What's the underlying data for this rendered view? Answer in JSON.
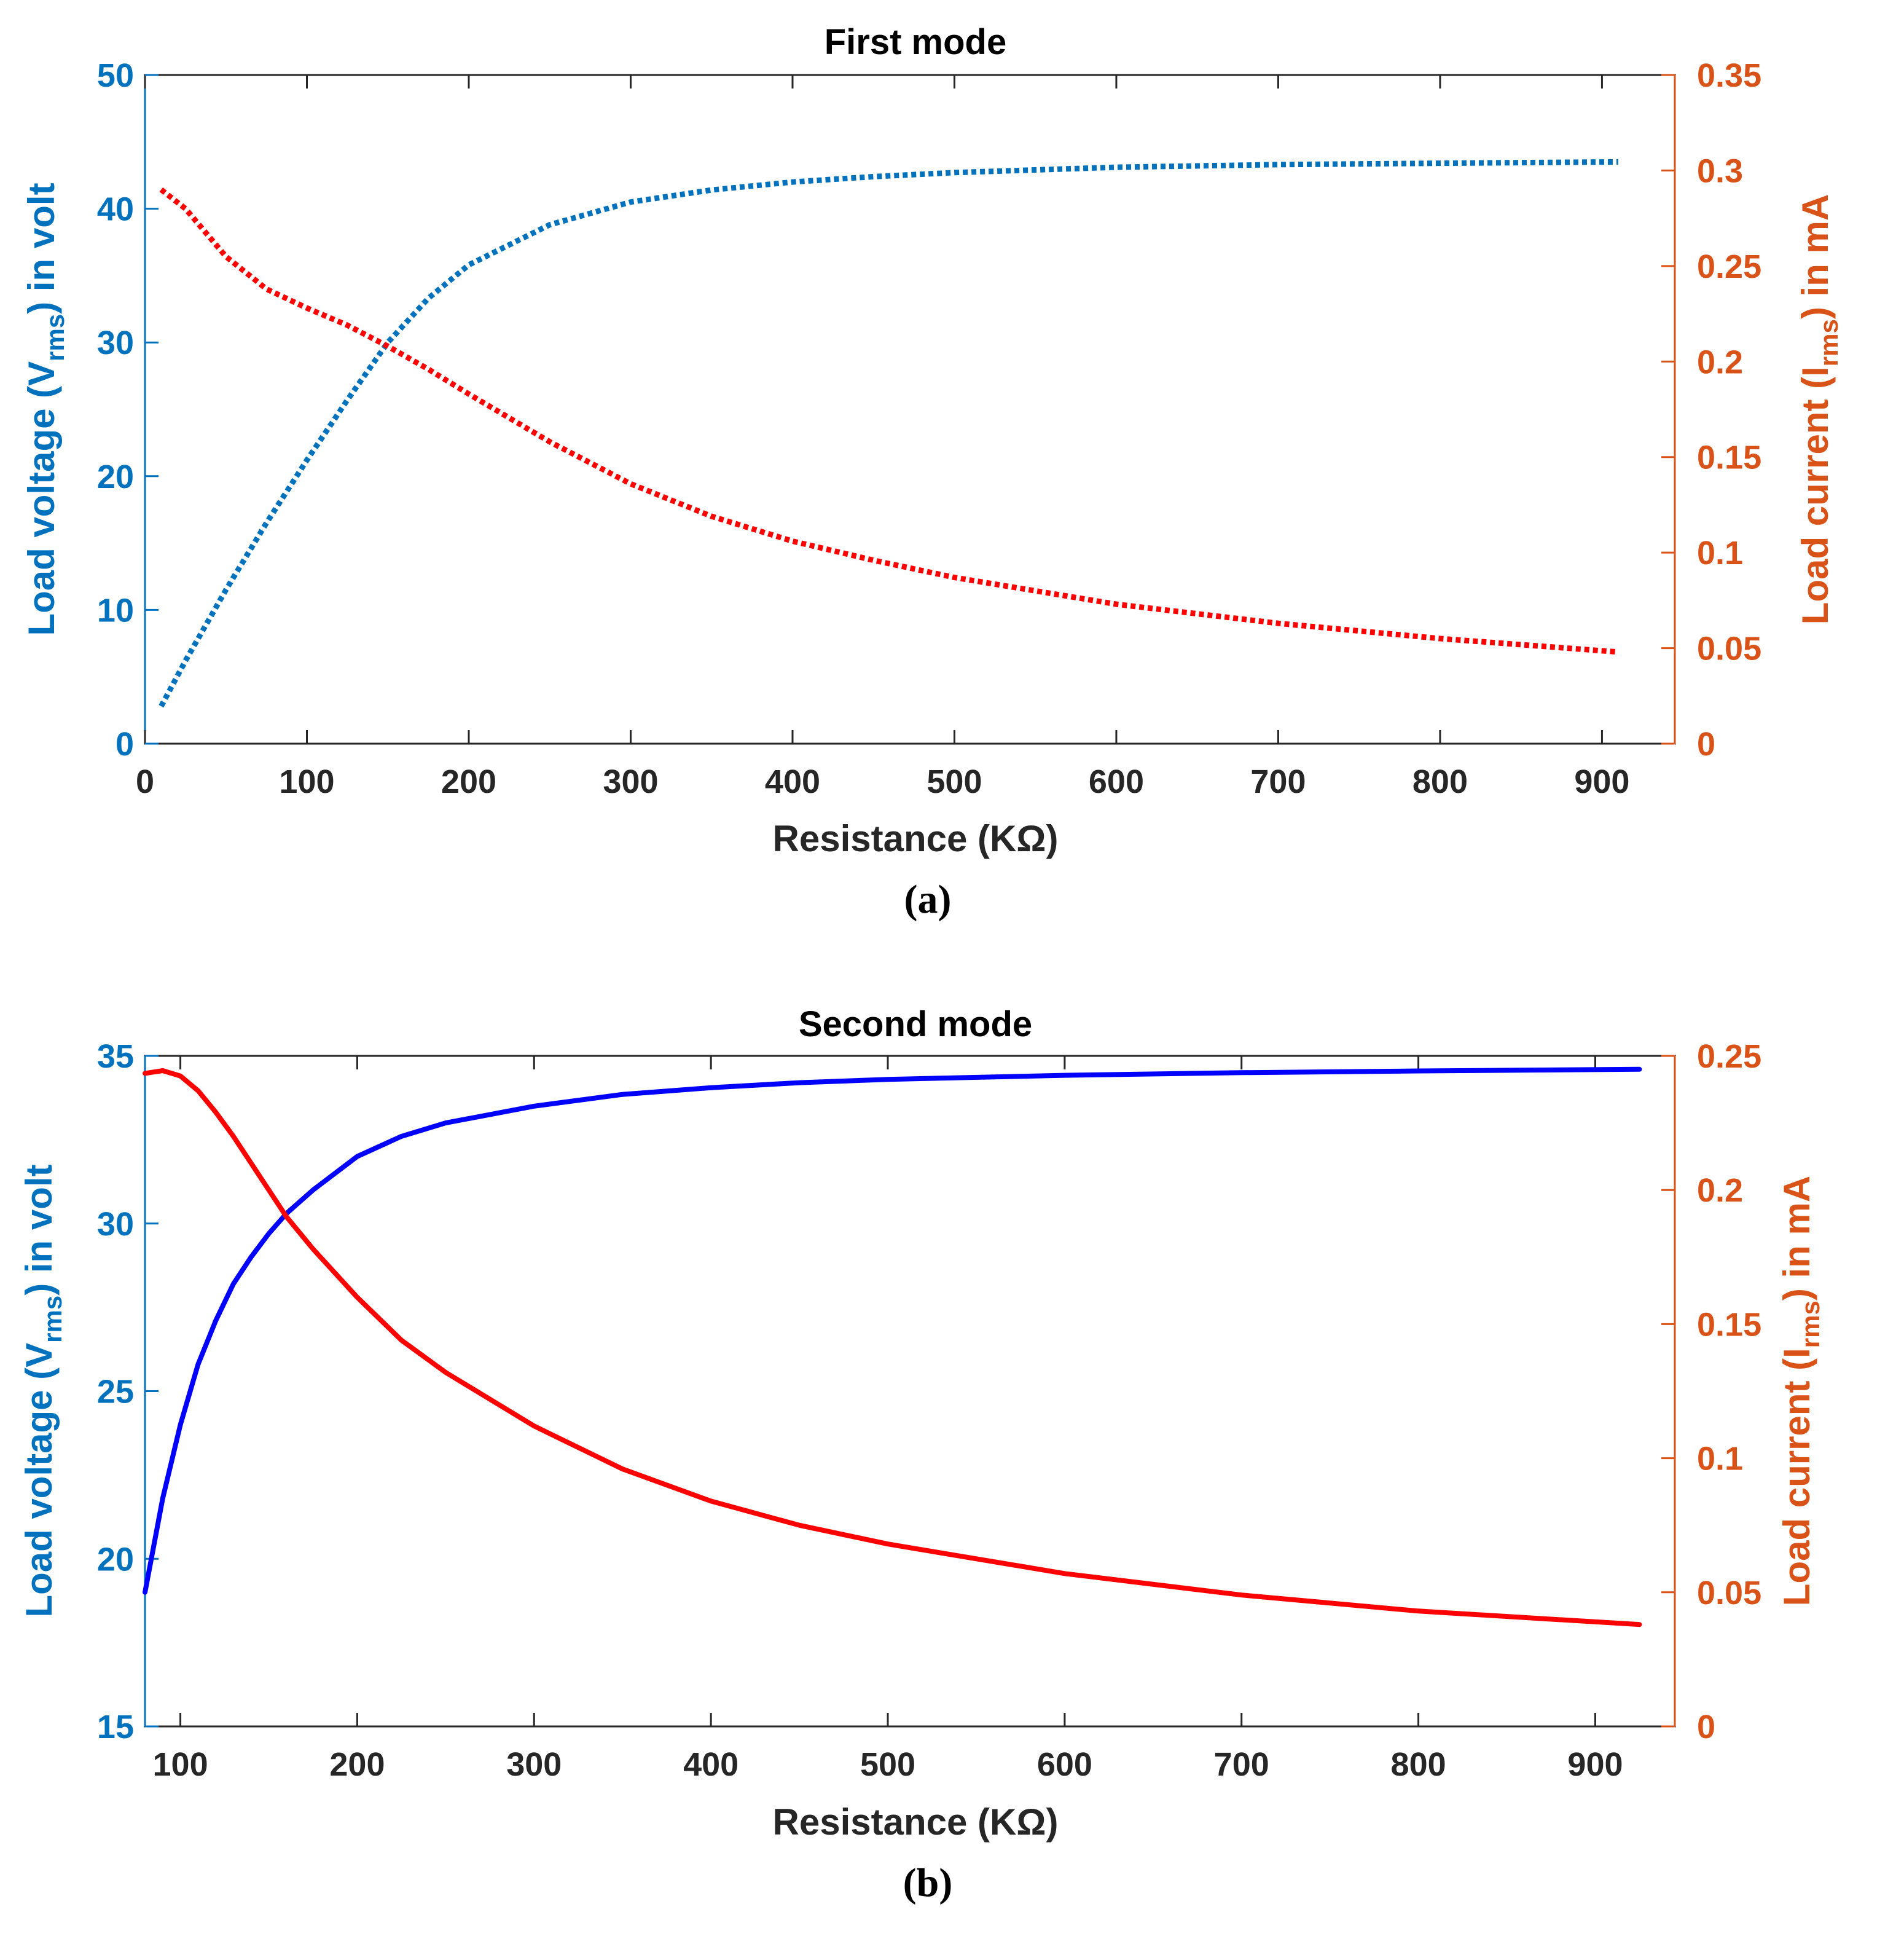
{
  "figure": {
    "panel_a_caption": "(a)",
    "panel_b_caption": "(b)"
  },
  "chart_data": [
    {
      "type": "line",
      "title": "First mode",
      "xlabel": "Resistance (KΩ)",
      "ylabel_left": {
        "main": "Load voltage (V",
        "sub": "rms",
        "tail": ") in volt"
      },
      "ylabel_right": {
        "main": "Load current (I",
        "sub": "rms",
        "tail": ") in mA"
      },
      "xlim": [
        0,
        945
      ],
      "xticks": [
        0,
        100,
        200,
        300,
        400,
        500,
        600,
        700,
        800,
        900
      ],
      "ylim_left": [
        0,
        50
      ],
      "yticks_left": [
        0,
        10,
        20,
        30,
        40,
        50
      ],
      "ylim_right": [
        0,
        0.35
      ],
      "yticks_right": [
        0,
        0.05,
        0.1,
        0.15,
        0.2,
        0.25,
        0.3,
        0.35
      ],
      "line_style": "dotted",
      "series": [
        {
          "name": "Load voltage",
          "axis": "left",
          "color": "#0072BD",
          "x": [
            10,
            25,
            50,
            75,
            100,
            125,
            150,
            175,
            200,
            250,
            300,
            350,
            400,
            450,
            500,
            600,
            700,
            800,
            910
          ],
          "y": [
            2.8,
            6.2,
            11.5,
            16.5,
            21.2,
            25.7,
            30.0,
            33.3,
            35.8,
            38.8,
            40.5,
            41.4,
            42.0,
            42.4,
            42.7,
            43.1,
            43.3,
            43.4,
            43.5
          ]
        },
        {
          "name": "Load current",
          "axis": "right",
          "color": "#FF0000",
          "x": [
            10,
            25,
            50,
            75,
            100,
            125,
            150,
            175,
            200,
            250,
            300,
            350,
            400,
            450,
            500,
            600,
            700,
            800,
            910
          ],
          "y": [
            0.29,
            0.28,
            0.255,
            0.238,
            0.228,
            0.219,
            0.208,
            0.196,
            0.183,
            0.158,
            0.136,
            0.119,
            0.106,
            0.096,
            0.087,
            0.073,
            0.063,
            0.055,
            0.048
          ]
        }
      ]
    },
    {
      "type": "line",
      "title": "Second mode",
      "xlabel": "Resistance (KΩ)",
      "ylabel_left": {
        "main": "Load voltage (V",
        "sub": "rms",
        "tail": ") in volt"
      },
      "ylabel_right": {
        "main": "Load current (I",
        "sub": "rms",
        "tail": ") in mA"
      },
      "xlim": [
        80,
        945
      ],
      "xticks": [
        100,
        200,
        300,
        400,
        500,
        600,
        700,
        800,
        900
      ],
      "ylim_left": [
        15,
        35
      ],
      "yticks_left": [
        15,
        20,
        25,
        30,
        35
      ],
      "ylim_right": [
        0,
        0.25
      ],
      "yticks_right": [
        0,
        0.05,
        0.1,
        0.15,
        0.2,
        0.25
      ],
      "line_style": "solid",
      "series": [
        {
          "name": "Load voltage",
          "axis": "left",
          "color": "#0000FF",
          "x": [
            80,
            90,
            100,
            110,
            120,
            130,
            140,
            150,
            160,
            175,
            200,
            225,
            250,
            300,
            350,
            400,
            450,
            500,
            600,
            700,
            800,
            925
          ],
          "y": [
            19.0,
            21.8,
            24.0,
            25.8,
            27.1,
            28.2,
            29.0,
            29.7,
            30.3,
            31.0,
            32.0,
            32.6,
            33.0,
            33.5,
            33.85,
            34.05,
            34.2,
            34.3,
            34.42,
            34.5,
            34.55,
            34.6
          ]
        },
        {
          "name": "Load current",
          "axis": "right",
          "color": "#FF0000",
          "x": [
            80,
            90,
            100,
            110,
            120,
            130,
            140,
            150,
            160,
            175,
            200,
            225,
            250,
            300,
            350,
            400,
            450,
            500,
            600,
            700,
            800,
            925
          ],
          "y": [
            0.2435,
            0.2445,
            0.2425,
            0.237,
            0.229,
            0.22,
            0.21,
            0.2,
            0.19,
            0.178,
            0.16,
            0.144,
            0.132,
            0.112,
            0.096,
            0.084,
            0.075,
            0.068,
            0.057,
            0.049,
            0.043,
            0.038
          ]
        }
      ]
    }
  ]
}
